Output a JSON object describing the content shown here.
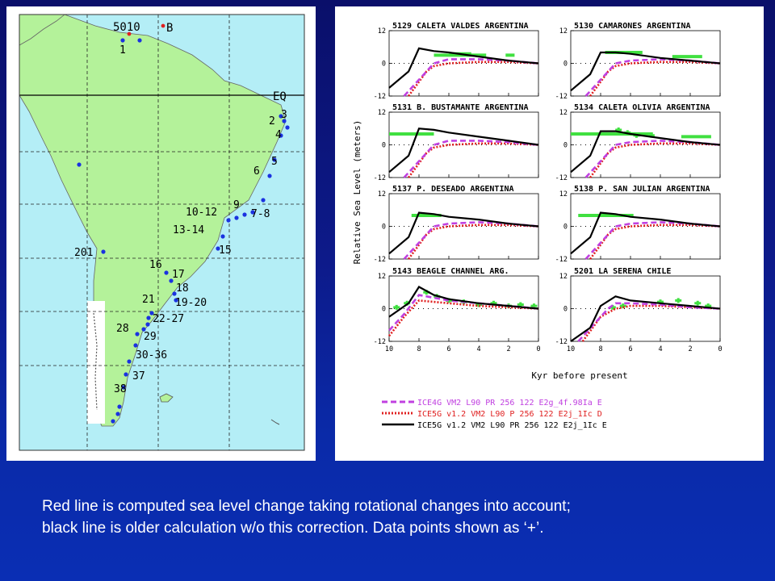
{
  "colors": {
    "ice4g": "#c040e0",
    "ice5g_p": "#e02020",
    "ice5g_pr": "#000000",
    "data_points": "#40e040",
    "land": "#b4f29a",
    "ocean": "#b4eef6",
    "site_marker": "#1a32e0"
  },
  "map": {
    "top_labels": [
      "5010",
      "B"
    ],
    "eq_label": "EQ",
    "site_labels": [
      "1",
      "2",
      "3",
      "4",
      "5",
      "6",
      "7-8",
      "9",
      "10-12",
      "13-14",
      "15",
      "16",
      "17",
      "18",
      "19-20",
      "21",
      "22-27",
      "28",
      "29",
      "30-36",
      "37",
      "38",
      "201"
    ]
  },
  "chart_data": {
    "type": "line",
    "ylabel": "Relative Sea Level (meters)",
    "xlabel": "Kyr before present",
    "xlim": [
      10,
      0
    ],
    "ylim": [
      -12,
      12
    ],
    "x_ticks": [
      10,
      8,
      6,
      4,
      2,
      0
    ],
    "y_ticks": [
      12,
      0,
      -12
    ],
    "legend": [
      {
        "key": "ice4g",
        "text": "ICE4G       VM2   L90 PR    256  122 E2g_4f.98Ia E"
      },
      {
        "key": "ice5g_p",
        "text": "ICE5G v1.2  VM2   L90 P     256  122 E2j_1Ic D"
      },
      {
        "key": "ice5g_pr",
        "text": "ICE5G v1.2  VM2   L90 PR    256  122 E2j_1Ic E"
      }
    ],
    "panels": [
      {
        "title": "5129 CALETA VALDES ARGENTINA",
        "series": {
          "ice5g_pr": {
            "x": [
              10,
              8.7,
              8,
              7,
              6,
              4,
              2,
              0
            ],
            "y": [
              -9,
              -3,
              5.5,
              4.5,
              4,
              2.5,
              1,
              0
            ]
          },
          "ice4g": {
            "x": [
              9,
              8,
              7,
              6,
              4,
              2,
              0
            ],
            "y": [
              -12,
              -6,
              0,
              1.5,
              1.5,
              1,
              0
            ]
          },
          "ice5g_p": {
            "x": [
              8.7,
              7.5,
              7,
              6,
              4,
              2,
              0
            ],
            "y": [
              -12,
              -3,
              -1,
              0,
              0.5,
              0.5,
              0
            ]
          }
        },
        "data": [
          {
            "x0": 7,
            "x1": 3.5,
            "y": 3
          },
          {
            "x0": 6,
            "x1": 4.5,
            "y": 3.5
          },
          {
            "x0": 2.2,
            "x1": 1.6,
            "y": 3
          }
        ]
      },
      {
        "title": "5130  CAMARONES ARGENTINA",
        "series": {
          "ice5g_pr": {
            "x": [
              10,
              8.7,
              8,
              7,
              6,
              4,
              2,
              0
            ],
            "y": [
              -10,
              -4,
              4,
              4,
              3.5,
              2,
              1,
              0
            ]
          },
          "ice4g": {
            "x": [
              9,
              8,
              7,
              6,
              4,
              2,
              0
            ],
            "y": [
              -12,
              -6,
              0,
              1,
              1.5,
              1,
              0
            ]
          },
          "ice5g_p": {
            "x": [
              8.7,
              7.5,
              7,
              6,
              4,
              2,
              0
            ],
            "y": [
              -12,
              -3,
              -1,
              0,
              0.5,
              0.5,
              0
            ]
          }
        },
        "data": [
          {
            "x0": 7.7,
            "x1": 5.2,
            "y": 4
          },
          {
            "x0": 3.2,
            "x1": 1.2,
            "y": 2.5
          }
        ]
      },
      {
        "title": "5131  B. BUSTAMANTE ARGENTINA",
        "series": {
          "ice5g_pr": {
            "x": [
              10,
              8.7,
              8,
              7,
              6,
              4,
              2,
              0
            ],
            "y": [
              -10,
              -4,
              6,
              5.5,
              4.5,
              3,
              1.5,
              0
            ]
          },
          "ice4g": {
            "x": [
              9,
              8,
              7,
              6,
              4,
              2,
              0
            ],
            "y": [
              -12,
              -6,
              0,
              1.5,
              1.5,
              1,
              0
            ]
          },
          "ice5g_p": {
            "x": [
              8.7,
              7.5,
              7,
              6,
              4,
              2,
              0
            ],
            "y": [
              -12,
              -3,
              -1,
              0,
              0.5,
              0.5,
              0
            ]
          }
        },
        "data": [
          {
            "x0": 10,
            "x1": 7,
            "y": 4
          }
        ]
      },
      {
        "title": "5134  CALETA OLIVIA ARGENTINA",
        "series": {
          "ice5g_pr": {
            "x": [
              10,
              8.7,
              8,
              7,
              6,
              4,
              2,
              0
            ],
            "y": [
              -10,
              -4,
              5,
              5,
              4,
              2.5,
              1,
              0
            ]
          },
          "ice4g": {
            "x": [
              9,
              8,
              7,
              6,
              4,
              2,
              0
            ],
            "y": [
              -12,
              -6,
              0,
              1,
              1.5,
              1,
              0
            ]
          },
          "ice5g_p": {
            "x": [
              8.7,
              7.5,
              7,
              6,
              4,
              2,
              0
            ],
            "y": [
              -12,
              -3,
              -1,
              0,
              0.5,
              0.5,
              0
            ]
          }
        },
        "data": [
          {
            "x0": 10,
            "x1": 7,
            "y": 4
          },
          {
            "x0": 7.2,
            "x1": 4.5,
            "y": 4
          },
          {
            "x0": 2.6,
            "x1": 0.6,
            "y": 3
          }
        ],
        "points": [
          {
            "x": 6.8,
            "y": 5.5
          },
          {
            "x": 6.2,
            "y": 4.5
          },
          {
            "x": 5.6,
            "y": 3.5
          },
          {
            "x": 4.6,
            "y": 3.5
          }
        ]
      },
      {
        "title": "5137  P. DESEADO ARGENTINA",
        "series": {
          "ice5g_pr": {
            "x": [
              10,
              8.7,
              8,
              7,
              6,
              4,
              2,
              0
            ],
            "y": [
              -10,
              -4,
              5,
              4.5,
              3.5,
              2.5,
              1,
              0
            ]
          },
          "ice4g": {
            "x": [
              9,
              8,
              7,
              6,
              4,
              2,
              0
            ],
            "y": [
              -12,
              -6,
              0,
              1,
              1.5,
              1,
              0
            ]
          },
          "ice5g_p": {
            "x": [
              8.7,
              7.5,
              7,
              6,
              4,
              2,
              0
            ],
            "y": [
              -12,
              -3,
              -1,
              0,
              0.5,
              0.5,
              0
            ]
          }
        },
        "data": [
          {
            "x0": 8.5,
            "x1": 6.5,
            "y": 4
          }
        ]
      },
      {
        "title": "5138  P. SAN JULIAN ARGENTINA",
        "series": {
          "ice5g_pr": {
            "x": [
              10,
              8.7,
              8,
              7,
              6,
              4,
              2,
              0
            ],
            "y": [
              -10,
              -4,
              5,
              4.5,
              3.5,
              2.5,
              1,
              0
            ]
          },
          "ice4g": {
            "x": [
              9,
              8,
              7,
              6,
              4,
              2,
              0
            ],
            "y": [
              -12,
              -6,
              0,
              1,
              1.5,
              1,
              0
            ]
          },
          "ice5g_p": {
            "x": [
              8.7,
              7.5,
              7,
              6,
              4,
              2,
              0
            ],
            "y": [
              -12,
              -3,
              -1,
              0,
              0.5,
              0.5,
              0
            ]
          }
        },
        "data": [
          {
            "x0": 9.5,
            "x1": 5.8,
            "y": 4
          }
        ]
      },
      {
        "title": "5143  BEAGLE CHANNEL ARG.",
        "series": {
          "ice5g_pr": {
            "x": [
              10,
              8.7,
              8,
              7,
              6,
              4,
              2,
              0
            ],
            "y": [
              -3,
              2,
              8,
              5,
              3.5,
              2,
              1,
              0
            ]
          },
          "ice4g": {
            "x": [
              10,
              9,
              8,
              7,
              6,
              4,
              2,
              0
            ],
            "y": [
              -8,
              -2,
              5,
              4,
              3,
              2,
              1,
              0
            ]
          },
          "ice5g_p": {
            "x": [
              10,
              9,
              8,
              7,
              6,
              4,
              2,
              0
            ],
            "y": [
              -10,
              -3,
              3,
              2.5,
              2,
              1,
              0.5,
              0
            ]
          }
        },
        "data": [],
        "points": [
          {
            "x": 9.5,
            "y": 0.5
          },
          {
            "x": 8.8,
            "y": 2
          },
          {
            "x": 7.5,
            "y": 6
          },
          {
            "x": 6.8,
            "y": 4.5
          },
          {
            "x": 6,
            "y": 3
          },
          {
            "x": 5,
            "y": 2.5
          },
          {
            "x": 4,
            "y": 1.5
          },
          {
            "x": 3,
            "y": 2
          },
          {
            "x": 2,
            "y": 1
          },
          {
            "x": 1.2,
            "y": 1.5
          },
          {
            "x": 0.3,
            "y": 1
          }
        ]
      },
      {
        "title": "5201  LA SERENA CHILE",
        "series": {
          "ice5g_pr": {
            "x": [
              10,
              8.7,
              8,
              7,
              6,
              4,
              2,
              0
            ],
            "y": [
              -12,
              -7,
              1,
              4.5,
              3,
              2,
              1,
              0
            ]
          },
          "ice4g": {
            "x": [
              9.5,
              8.5,
              7.5,
              7,
              6,
              4,
              2,
              0
            ],
            "y": [
              -12,
              -6,
              0,
              2,
              2,
              1.5,
              0.5,
              0
            ]
          },
          "ice5g_p": {
            "x": [
              9.2,
              8,
              7,
              6,
              4,
              2,
              0
            ],
            "y": [
              -12,
              -3,
              0,
              1,
              1,
              0.5,
              0
            ]
          }
        },
        "data": [],
        "points": [
          {
            "x": 7.2,
            "y": 0.5
          },
          {
            "x": 6.5,
            "y": 1
          },
          {
            "x": 4,
            "y": 2.5
          },
          {
            "x": 2.8,
            "y": 3
          },
          {
            "x": 1.5,
            "y": 2
          },
          {
            "x": 0.8,
            "y": 1
          }
        ]
      }
    ]
  },
  "caption": {
    "line1": "Red line is computed sea level change taking rotational changes into account;",
    "line2": "black line is older calculation w/o this correction. Data points shown as ‘+’."
  }
}
